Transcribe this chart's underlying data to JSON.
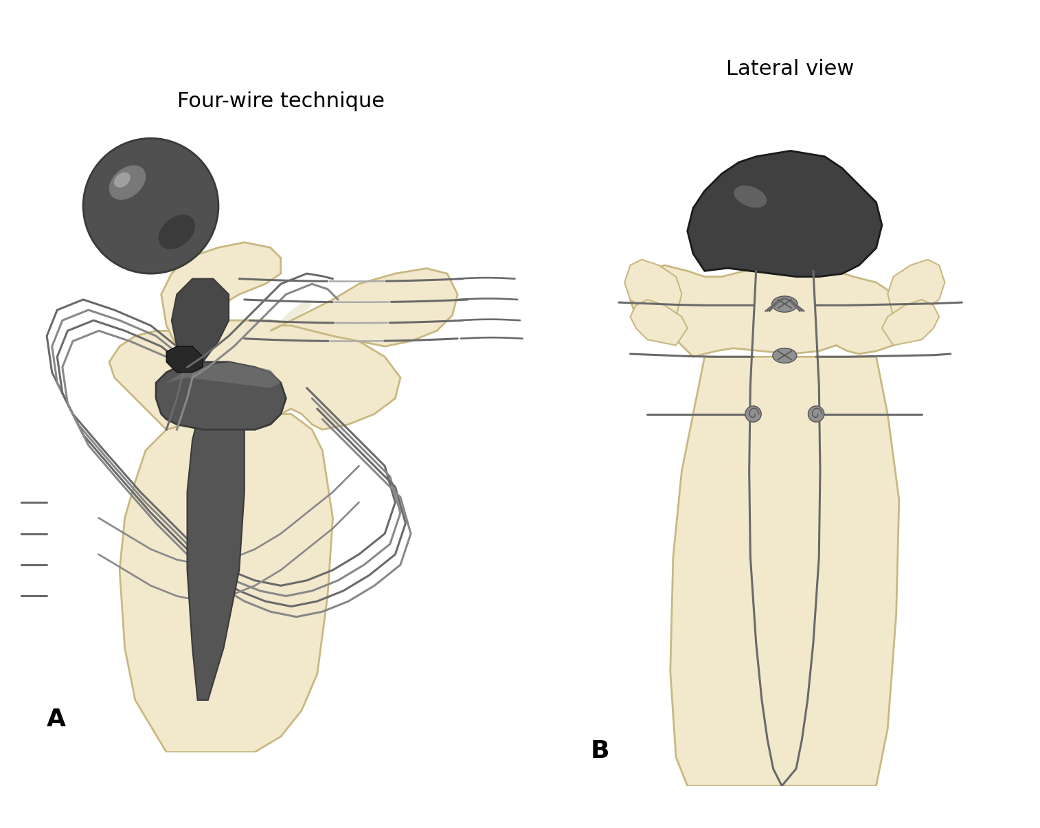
{
  "title_A": "Four-wire technique",
  "title_B": "Lateral view",
  "label_A": "A",
  "label_B": "B",
  "bg_color": "#ffffff",
  "bone_fill": "#f2e8cc",
  "bone_edge": "#c8b882",
  "bone_shadow": "#ddd0a8",
  "wire_dark": "#6a6a6a",
  "wire_mid": "#888888",
  "wire_light": "#aaaaaa",
  "implant_dark": "#3a3a3a",
  "implant_mid": "#555555",
  "implant_light": "#777777",
  "implant_highlight": "#999999",
  "title_fontsize": 22,
  "label_fontsize": 26
}
